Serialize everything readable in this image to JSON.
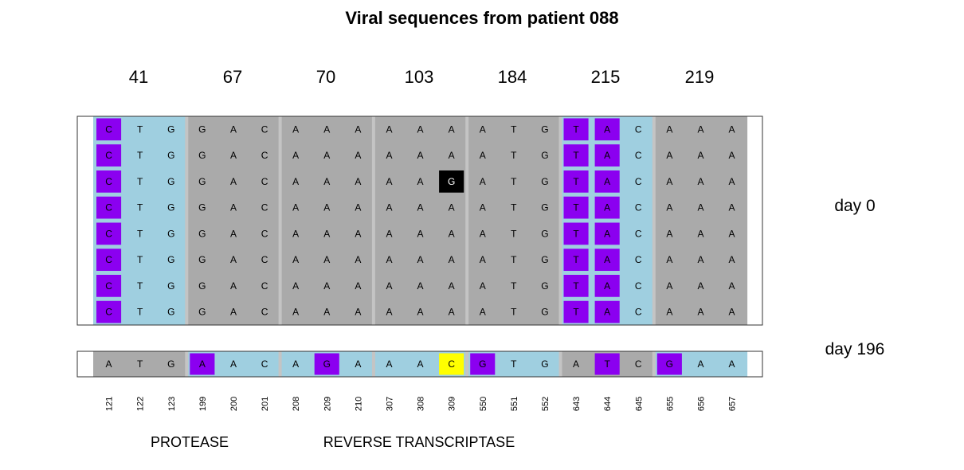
{
  "title": "Viral sequences from patient 088",
  "codons": [
    "41",
    "67",
    "70",
    "103",
    "184",
    "215",
    "219"
  ],
  "positions": [
    "121",
    "122",
    "123",
    "199",
    "200",
    "201",
    "208",
    "209",
    "210",
    "307",
    "308",
    "309",
    "550",
    "551",
    "552",
    "643",
    "644",
    "645",
    "655",
    "656",
    "657"
  ],
  "regions": [
    "PROTEASE",
    "REVERSE TRANSCRIPTASE"
  ],
  "groups": [
    {
      "label": "day 0",
      "sequences": [
        [
          "C",
          "T",
          "G",
          "G",
          "A",
          "C",
          "A",
          "A",
          "A",
          "A",
          "A",
          "A",
          "A",
          "T",
          "G",
          "T",
          "A",
          "C",
          "A",
          "A",
          "A"
        ],
        [
          "C",
          "T",
          "G",
          "G",
          "A",
          "C",
          "A",
          "A",
          "A",
          "A",
          "A",
          "A",
          "A",
          "T",
          "G",
          "T",
          "A",
          "C",
          "A",
          "A",
          "A"
        ],
        [
          "C",
          "T",
          "G",
          "G",
          "A",
          "C",
          "A",
          "A",
          "A",
          "A",
          "A",
          "G",
          "A",
          "T",
          "G",
          "T",
          "A",
          "C",
          "A",
          "A",
          "A"
        ],
        [
          "C",
          "T",
          "G",
          "G",
          "A",
          "C",
          "A",
          "A",
          "A",
          "A",
          "A",
          "A",
          "A",
          "T",
          "G",
          "T",
          "A",
          "C",
          "A",
          "A",
          "A"
        ],
        [
          "C",
          "T",
          "G",
          "G",
          "A",
          "C",
          "A",
          "A",
          "A",
          "A",
          "A",
          "A",
          "A",
          "T",
          "G",
          "T",
          "A",
          "C",
          "A",
          "A",
          "A"
        ],
        [
          "C",
          "T",
          "G",
          "G",
          "A",
          "C",
          "A",
          "A",
          "A",
          "A",
          "A",
          "A",
          "A",
          "T",
          "G",
          "T",
          "A",
          "C",
          "A",
          "A",
          "A"
        ],
        [
          "C",
          "T",
          "G",
          "G",
          "A",
          "C",
          "A",
          "A",
          "A",
          "A",
          "A",
          "A",
          "A",
          "T",
          "G",
          "T",
          "A",
          "C",
          "A",
          "A",
          "A"
        ],
        [
          "C",
          "T",
          "G",
          "G",
          "A",
          "C",
          "A",
          "A",
          "A",
          "A",
          "A",
          "A",
          "A",
          "T",
          "G",
          "T",
          "A",
          "C",
          "A",
          "A",
          "A"
        ]
      ],
      "codon_backgrounds": [
        "lightblue",
        "gray",
        "gray",
        "gray",
        "gray",
        "lightblue",
        "gray"
      ],
      "highlights": {
        "purple": [
          [
            0,
            0
          ],
          [
            0,
            15
          ],
          [
            0,
            16
          ],
          [
            1,
            0
          ],
          [
            1,
            15
          ],
          [
            1,
            16
          ],
          [
            2,
            0
          ],
          [
            2,
            15
          ],
          [
            2,
            16
          ],
          [
            3,
            0
          ],
          [
            3,
            15
          ],
          [
            3,
            16
          ],
          [
            4,
            0
          ],
          [
            4,
            15
          ],
          [
            4,
            16
          ],
          [
            5,
            0
          ],
          [
            5,
            15
          ],
          [
            5,
            16
          ],
          [
            6,
            0
          ],
          [
            6,
            15
          ],
          [
            6,
            16
          ],
          [
            7,
            0
          ],
          [
            7,
            15
          ],
          [
            7,
            16
          ]
        ],
        "black": [
          [
            2,
            11
          ]
        ]
      }
    },
    {
      "label": "day 196",
      "sequences": [
        [
          "A",
          "T",
          "G",
          "A",
          "A",
          "C",
          "A",
          "G",
          "A",
          "A",
          "A",
          "C",
          "G",
          "T",
          "G",
          "A",
          "T",
          "C",
          "G",
          "A",
          "A"
        ]
      ],
      "codon_backgrounds": [
        "gray",
        "lightblue",
        "lightblue",
        "lightblue",
        "lightblue",
        "gray",
        "lightblue"
      ],
      "highlights": {
        "purple": [
          [
            0,
            3
          ],
          [
            0,
            7
          ],
          [
            0,
            12
          ],
          [
            0,
            16
          ],
          [
            0,
            18
          ]
        ],
        "yellow": [
          [
            0,
            11
          ]
        ]
      }
    }
  ],
  "colors": {
    "gray": "#aaaaaa",
    "lightblue": "#9fcfe0",
    "purple": "#8b00f0",
    "black": "#000000",
    "yellow": "#ffff00",
    "separator": "#c4c4c4"
  }
}
